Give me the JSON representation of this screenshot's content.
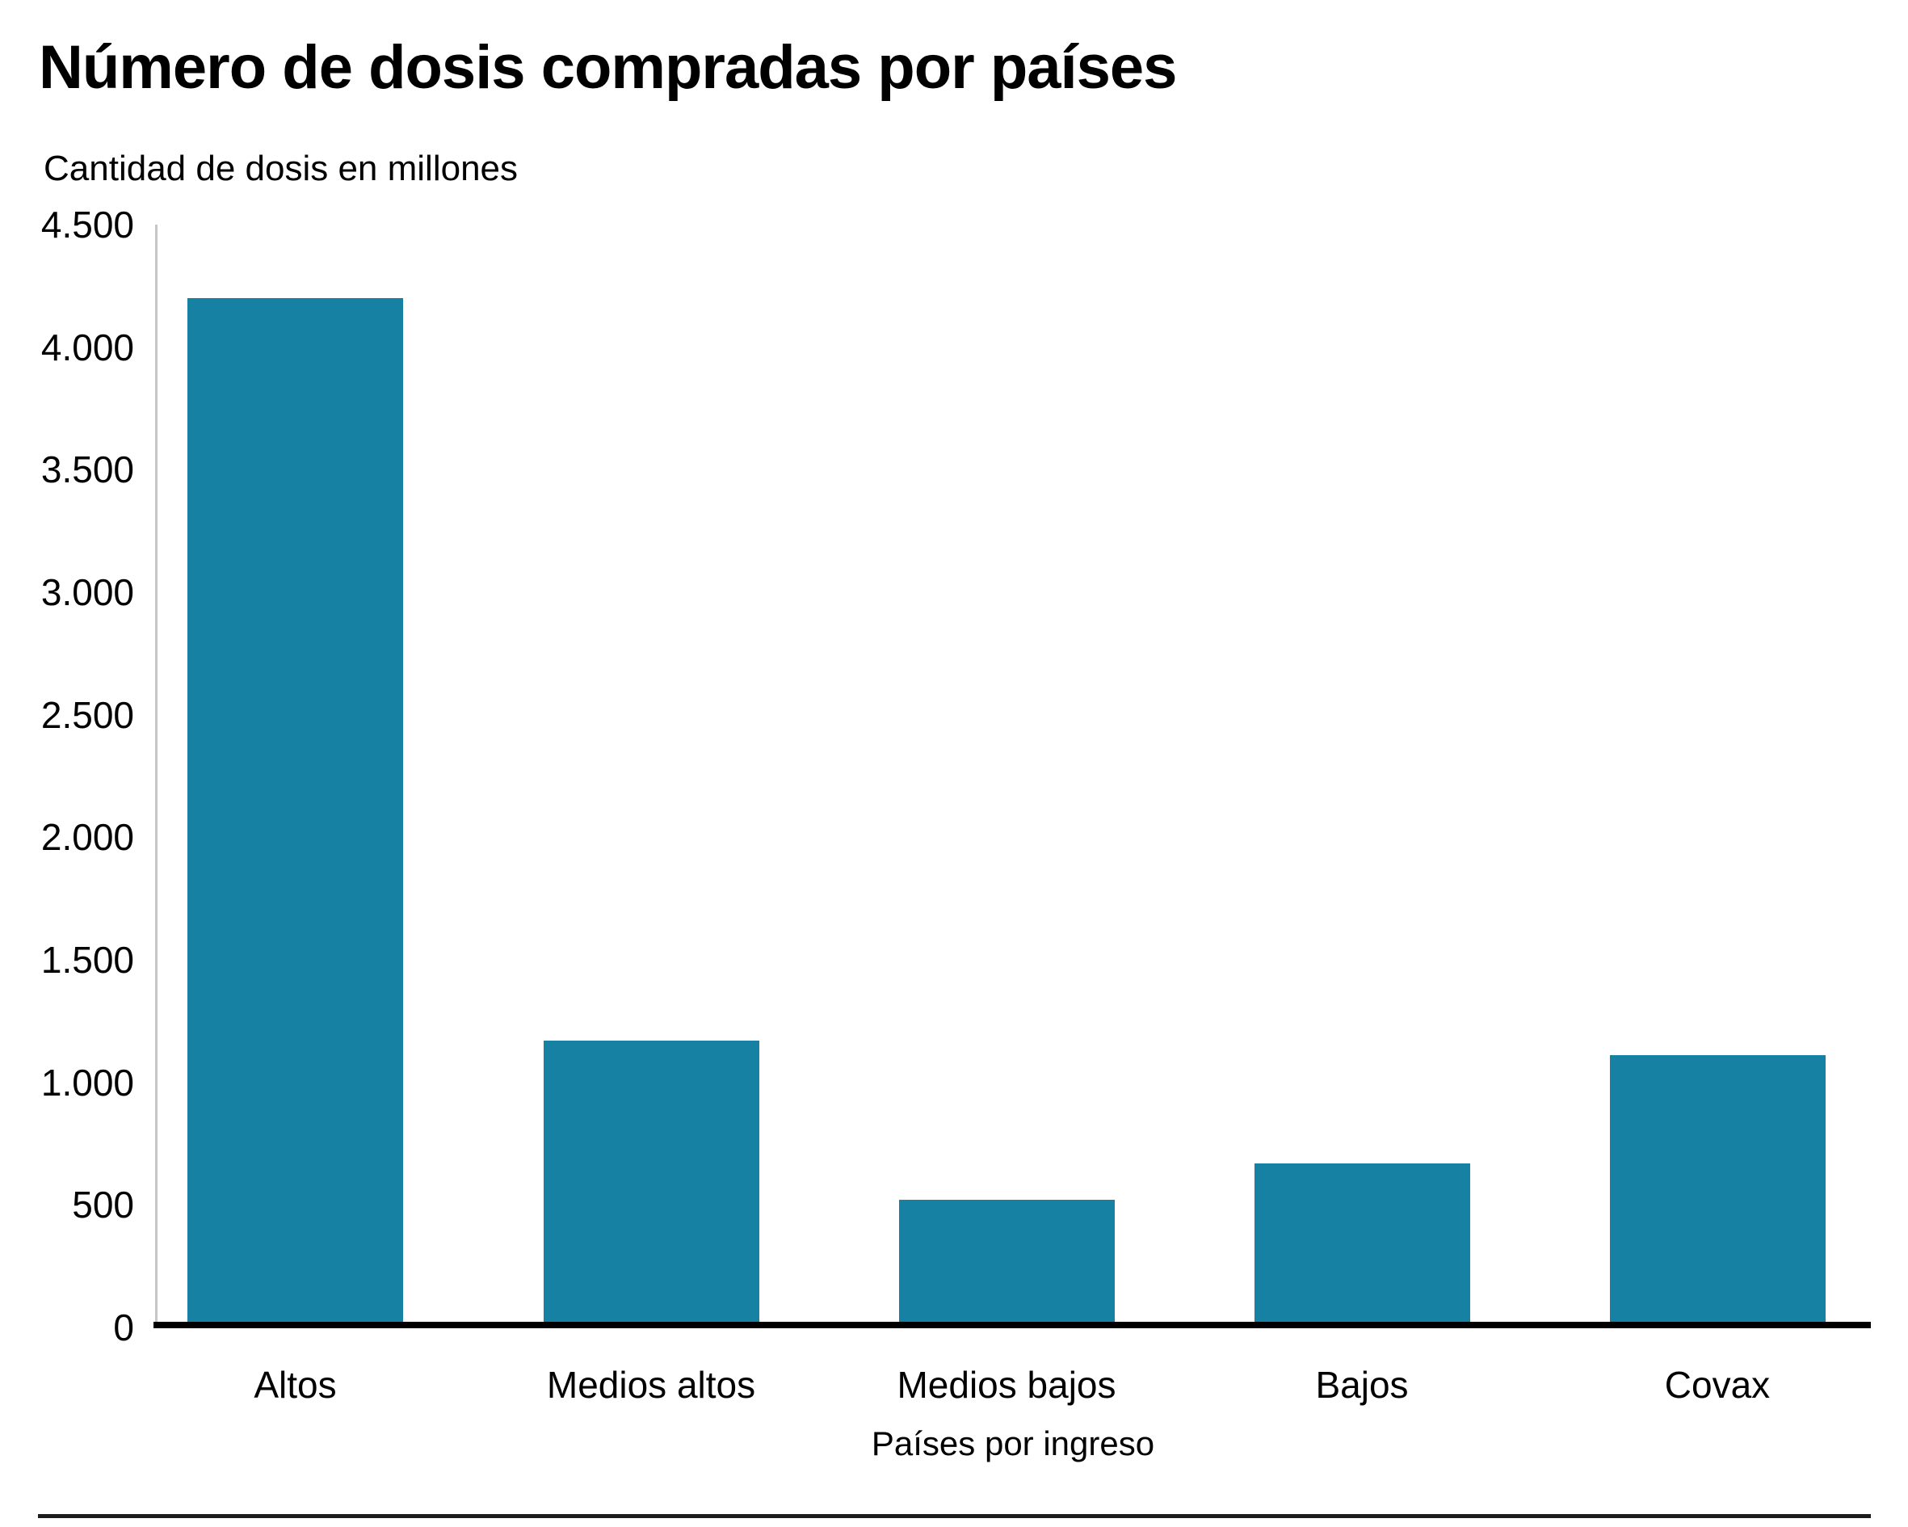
{
  "chart_data": {
    "type": "bar",
    "title": "Número de dosis compradas por países",
    "subtitle": "Cantidad de dosis en millones",
    "xlabel": "Países por ingreso",
    "ylabel": "Cantidad de dosis en millones",
    "categories": [
      "Altos",
      "Medios altos",
      "Medios bajos",
      "Bajos",
      "Covax"
    ],
    "values": [
      4200,
      1170,
      520,
      670,
      1110
    ],
    "ylim": [
      0,
      4500
    ],
    "yticks": [
      {
        "label": "4.500",
        "value": 4500
      },
      {
        "label": "4.000",
        "value": 4000
      },
      {
        "label": "3.500",
        "value": 3500
      },
      {
        "label": "3.000",
        "value": 3000
      },
      {
        "label": "2.500",
        "value": 2500
      },
      {
        "label": "2.000",
        "value": 2000
      },
      {
        "label": "1.500",
        "value": 1500
      },
      {
        "label": "1.000",
        "value": 1000
      },
      {
        "label": "500",
        "value": 500
      },
      {
        "label": "0",
        "value": 0
      }
    ],
    "grid": false,
    "legend_position": "none",
    "colors": {
      "bar": "#1681a3",
      "axis_line": "#c6c6c6",
      "baseline": "#000000",
      "divider": "#1c1c1c",
      "text": "#000000"
    }
  }
}
